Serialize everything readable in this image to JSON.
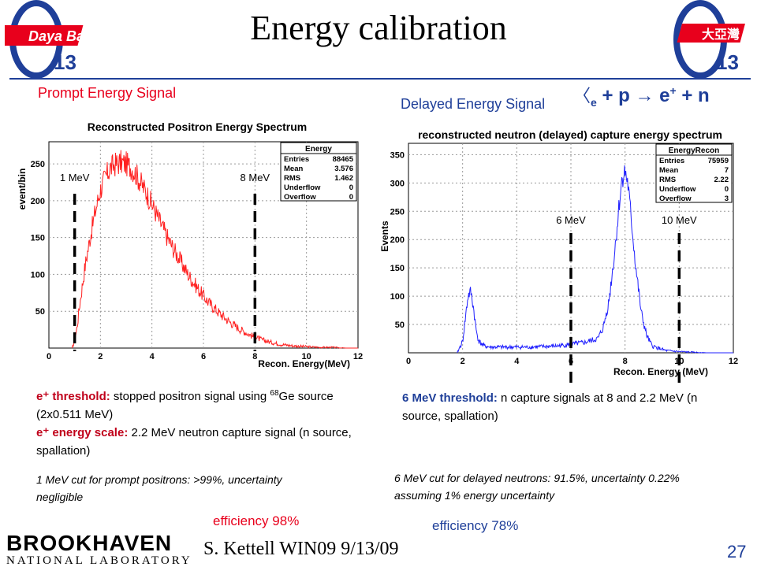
{
  "slide": {
    "title": "Energy calibration",
    "prompt_label": "Prompt Energy Signal",
    "delayed_label": "Delayed Energy Signal",
    "reaction": {
      "nu": "〈",
      "sub_e": "e",
      "rest": " + p \u0000 e⁺ + n"
    },
    "logo_left": {
      "theta": "θ",
      "sub": "13",
      "text": "Daya Bay"
    },
    "logo_right": {
      "theta": "θ",
      "sub": "13",
      "text": "大亞灣"
    },
    "footer": {
      "presenter": "S. Kettell WIN09 9/13/09",
      "page": "27",
      "institution_top": "BROOKHAVEN",
      "institution_bottom": "NATIONAL LABORATORY"
    },
    "prompt_notes": {
      "line1_head": "e⁺ threshold:",
      "line1_body": " stopped positron signal using ",
      "line1_sup": "68",
      "line1_tail": "Ge source (2x0.511 MeV)",
      "line2_head": "e⁺ energy scale:",
      "line2_body": " 2.2 MeV neutron capture signal (n source, spallation)"
    },
    "prompt_cut": "1 MeV cut for prompt positrons: >99%, uncertainty negligible",
    "prompt_eff": "efficiency 98%",
    "delayed_notes": {
      "head": "6 MeV threshold:",
      "body": " n capture signals at 8 and 2.2 MeV (n source, spallation)"
    },
    "delayed_cut": "6 MeV cut for delayed neutrons: 91.5%, uncertainty 0.22% assuming 1% energy uncertainty",
    "delayed_eff": "efficiency 78%",
    "colors": {
      "title_blue": "#1f3f99",
      "red": "#e8001c",
      "hist_red": "#ff2020",
      "hist_blue": "#2020ff",
      "eff_red": "#e8001c",
      "eff_blue": "#1f3f99"
    }
  },
  "chart_data": [
    {
      "type": "line",
      "title": "Reconstructed Positron Energy Spectrum",
      "xlabel": "Recon. Energy(MeV)",
      "ylabel": "event/bin",
      "xlim": [
        0,
        12
      ],
      "ylim": [
        0,
        280
      ],
      "xticks": [
        0,
        2,
        4,
        6,
        8,
        10,
        12
      ],
      "yticks": [
        50,
        100,
        150,
        200,
        250
      ],
      "x": [
        0.9,
        1.0,
        1.1,
        1.2,
        1.4,
        1.6,
        1.8,
        2.0,
        2.2,
        2.4,
        2.6,
        2.8,
        3.0,
        3.2,
        3.4,
        3.6,
        3.8,
        4.0,
        4.2,
        4.4,
        4.6,
        4.8,
        5.0,
        5.4,
        5.8,
        6.2,
        6.6,
        7.0,
        7.4,
        7.8,
        8.2,
        8.6,
        9.0,
        9.5,
        10.0,
        10.5,
        11.0,
        11.5,
        12.0
      ],
      "y": [
        0,
        10,
        30,
        60,
        110,
        150,
        185,
        215,
        232,
        245,
        250,
        252,
        250,
        245,
        235,
        222,
        210,
        195,
        180,
        165,
        150,
        137,
        125,
        100,
        80,
        62,
        48,
        36,
        26,
        18,
        12,
        8,
        5,
        3,
        2,
        1,
        1,
        0,
        0
      ],
      "series": [
        {
          "name": "Energy",
          "color": "#ff2020"
        }
      ],
      "stats": {
        "header": "Energy",
        "rows": [
          [
            "Entries",
            "88465"
          ],
          [
            "Mean",
            "3.576"
          ],
          [
            "RMS",
            "1.462"
          ],
          [
            "Underflow",
            "0"
          ],
          [
            "Overflow",
            "0"
          ]
        ]
      },
      "cuts": [
        {
          "label": "1 MeV",
          "x": 1
        },
        {
          "label": "8 MeV",
          "x": 8
        }
      ]
    },
    {
      "type": "line",
      "title": "reconstructed neutron (delayed) capture energy spectrum",
      "xlabel": "Recon. Energy (MeV)",
      "ylabel": "Events",
      "xlim": [
        0,
        12
      ],
      "ylim": [
        0,
        370
      ],
      "xticks": [
        0,
        2,
        4,
        6,
        8,
        10,
        12
      ],
      "yticks": [
        50,
        100,
        150,
        200,
        250,
        300,
        350
      ],
      "x": [
        1.8,
        2.0,
        2.1,
        2.2,
        2.3,
        2.4,
        2.5,
        2.6,
        2.8,
        3.0,
        3.5,
        4.0,
        4.5,
        5.0,
        5.5,
        6.0,
        6.5,
        7.0,
        7.2,
        7.4,
        7.6,
        7.8,
        7.9,
        8.0,
        8.1,
        8.2,
        8.4,
        8.6,
        8.8,
        9.0,
        9.5,
        10.0,
        10.5,
        11.0,
        12.0
      ],
      "y": [
        0,
        20,
        60,
        100,
        108,
        80,
        40,
        20,
        12,
        10,
        10,
        10,
        10,
        11,
        12,
        15,
        18,
        25,
        45,
        90,
        170,
        270,
        310,
        320,
        300,
        250,
        150,
        70,
        30,
        12,
        4,
        2,
        1,
        0,
        0
      ],
      "series": [
        {
          "name": "EnergyRecon",
          "color": "#2020ff"
        }
      ],
      "stats": {
        "header": "EnergyRecon",
        "rows": [
          [
            "Entries",
            "75959"
          ],
          [
            "Mean",
            "7"
          ],
          [
            "RMS",
            "2.22"
          ],
          [
            "Underflow",
            "0"
          ],
          [
            "Overflow",
            "3"
          ]
        ]
      },
      "cuts": [
        {
          "label": "6 MeV",
          "x": 6
        },
        {
          "label": "10 MeV",
          "x": 10
        }
      ]
    }
  ]
}
